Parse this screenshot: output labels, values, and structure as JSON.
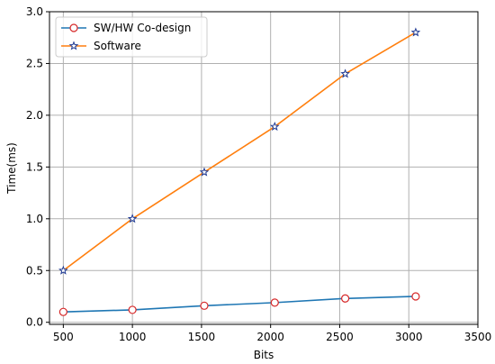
{
  "chart_data": {
    "type": "line",
    "xlabel": "Bits",
    "ylabel": "Time(ms)",
    "xlim": [
      400,
      3500
    ],
    "ylim": [
      -0.02,
      3.0
    ],
    "xticks": [
      500,
      1000,
      1500,
      2000,
      2500,
      3000,
      3500
    ],
    "yticks": [
      0.0,
      0.5,
      1.0,
      1.5,
      2.0,
      2.5,
      3.0
    ],
    "xtick_labels": [
      "500",
      "1000",
      "1500",
      "2000",
      "2500",
      "3000",
      "3500"
    ],
    "ytick_labels": [
      "0.0",
      "0.5",
      "1.0",
      "1.5",
      "2.0",
      "2.5",
      "3.0"
    ],
    "grid": true,
    "legend_position": "top-left",
    "series": [
      {
        "name": "SW/HW Co-design",
        "color": "#1f77b4",
        "marker": "circle",
        "marker_edge_color": "#d62728",
        "x": [
          500,
          1000,
          1520,
          2030,
          2540,
          3050
        ],
        "y": [
          0.1,
          0.12,
          0.16,
          0.19,
          0.23,
          0.25
        ]
      },
      {
        "name": "Software",
        "color": "#ff7f0e",
        "marker": "star",
        "marker_edge_color": "#1f3a93",
        "x": [
          500,
          1000,
          1520,
          2030,
          2540,
          3050
        ],
        "y": [
          0.5,
          1.0,
          1.45,
          1.89,
          2.4,
          2.8
        ]
      }
    ]
  }
}
